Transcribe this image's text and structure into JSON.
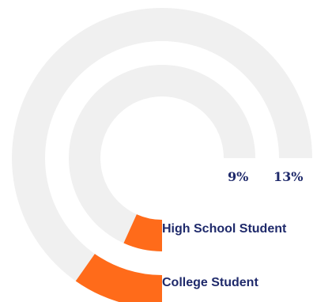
{
  "chart_data": {
    "type": "radial-bar",
    "series": [
      {
        "name": "College Student",
        "label": "13%",
        "value": 13
      },
      {
        "name": "High School Student",
        "label": "9%",
        "value": 9
      }
    ],
    "max": 100,
    "colors": {
      "track": "#f0f0f0",
      "fill": "#ff6b1a",
      "text": "#1f2a6b"
    }
  }
}
